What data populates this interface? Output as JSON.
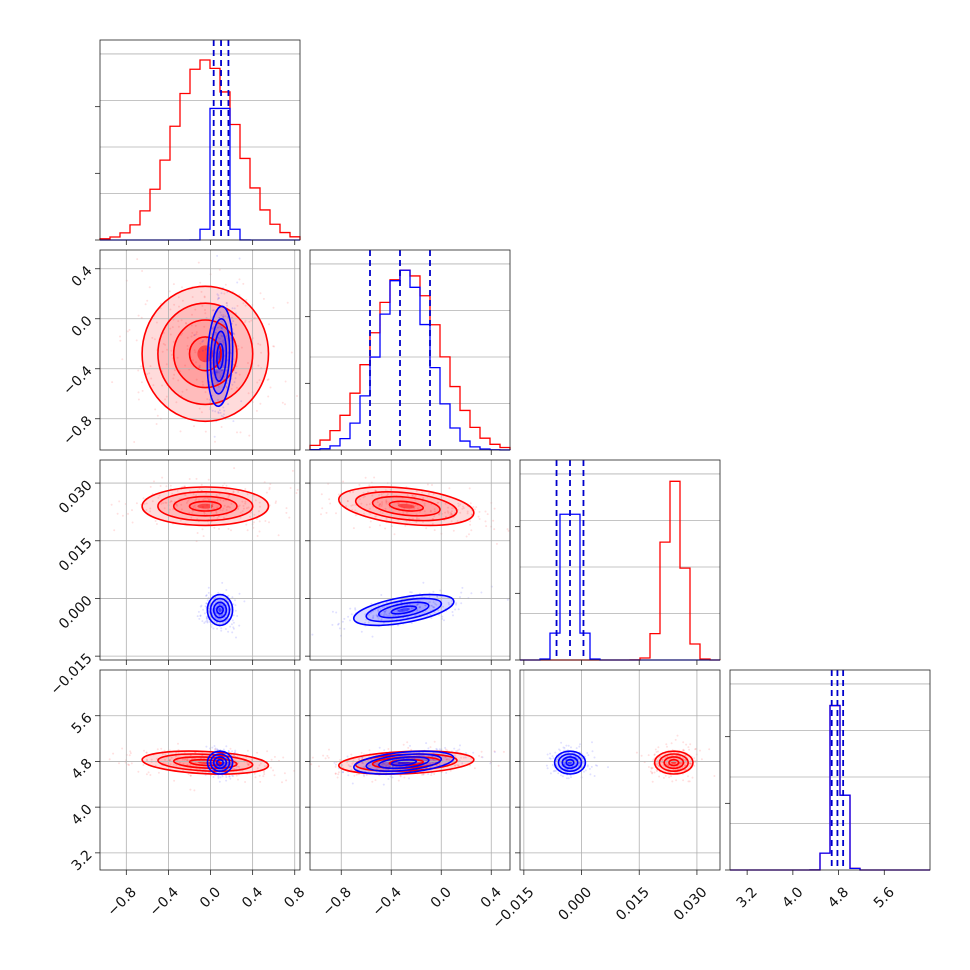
{
  "chart_data": {
    "type": "corner",
    "colors": {
      "red": "#ff0000",
      "blue": "#0000ff",
      "quantile_line": "#0000cc"
    },
    "grid": true,
    "axes": {
      "p0": {
        "range": [
          -1.05,
          0.85
        ],
        "ticks": [
          -0.8,
          -0.4,
          0.0,
          0.4,
          0.8
        ],
        "ticklabels": [
          "−0.8",
          "−0.4",
          "0.0",
          "0.4",
          "0.8"
        ]
      },
      "p1": {
        "range": [
          -1.05,
          0.55
        ],
        "ticks": [
          -0.8,
          -0.4,
          0.0,
          0.4
        ],
        "ticklabels": [
          "−0.8",
          "−0.4",
          "0.0",
          "0.4"
        ]
      },
      "p2": {
        "range": [
          -0.016,
          0.036
        ],
        "ticks": [
          -0.015,
          0.0,
          0.015,
          0.03
        ],
        "ticklabels": [
          "−0.015",
          "0.000",
          "0.015",
          "0.030"
        ]
      },
      "p3": {
        "range": [
          2.9,
          6.4
        ],
        "ticks": [
          3.2,
          4.0,
          4.8,
          5.6
        ],
        "ticklabels": [
          "3.2",
          "4.0",
          "4.8",
          "5.6"
        ]
      }
    },
    "series": [
      {
        "name": "",
        "color": "#ff0000",
        "mean": [
          -0.05,
          -0.28,
          0.024,
          4.78
        ],
        "sd": [
          0.3,
          0.27,
          0.0025,
          0.1
        ],
        "corr": [
          [
            1,
            0,
            0,
            -0.25
          ],
          [
            0,
            1,
            -0.35,
            0.25
          ],
          [
            0,
            -0.35,
            1,
            0
          ],
          [
            -0.25,
            0.25,
            0,
            1
          ]
        ]
      },
      {
        "name": "",
        "color": "#0000ff",
        "mean": [
          0.09,
          -0.3,
          -0.003,
          4.78
        ],
        "sd": [
          0.06,
          0.2,
          0.002,
          0.1
        ],
        "corr": [
          [
            1,
            0.15,
            0,
            0
          ],
          [
            0.15,
            1,
            0.55,
            0.4
          ],
          [
            0,
            0.55,
            1,
            0
          ],
          [
            0,
            0.4,
            0,
            1
          ]
        ]
      }
    ],
    "quantile_lines": [
      [
        0.03,
        0.1,
        0.17
      ],
      [
        -0.57,
        -0.33,
        -0.09
      ],
      [
        -0.0065,
        -0.003,
        0.0005
      ],
      [
        4.68,
        4.78,
        4.88
      ]
    ]
  }
}
